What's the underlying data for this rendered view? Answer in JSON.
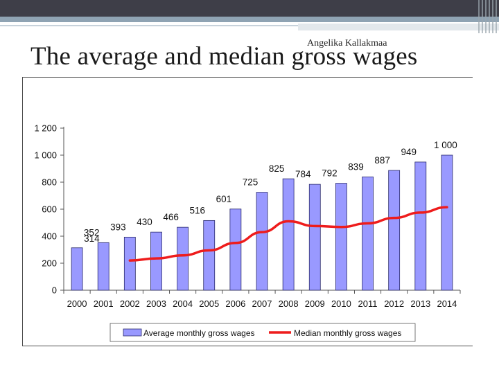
{
  "slide": {
    "author": "Angelika Kallakmaa",
    "title": "The average and median gross wages"
  },
  "colors": {
    "bar_fill": "#9999ff",
    "bar_stroke": "#2a2a6a",
    "median_line": "#ee1c1c"
  },
  "chart_data": {
    "type": "bar",
    "title": "",
    "xlabel": "",
    "ylabel": "",
    "ylim": [
      0,
      1200
    ],
    "y_ticks": [
      0,
      200,
      400,
      600,
      800,
      1000,
      1200
    ],
    "y_tick_labels": [
      "0",
      "200",
      "400",
      "600",
      "800",
      "1 000",
      "1 200"
    ],
    "categories": [
      "2000",
      "2001",
      "2002",
      "2003",
      "2004",
      "2005",
      "2006",
      "2007",
      "2008",
      "2009",
      "2010",
      "2011",
      "2012",
      "2013",
      "2014"
    ],
    "series": [
      {
        "name": "Average monthly gross wages",
        "kind": "bar",
        "values": [
          314,
          352,
          393,
          430,
          466,
          516,
          601,
          725,
          825,
          784,
          792,
          839,
          887,
          949,
          1000
        ],
        "labels": [
          "314",
          "352",
          "393",
          "430",
          "466",
          "516",
          "601",
          "725",
          "825",
          "784",
          "792",
          "839",
          "887",
          "949",
          "1 000"
        ]
      },
      {
        "name": "Median monthly gross wages",
        "kind": "line",
        "values": [
          null,
          null,
          220,
          235,
          258,
          295,
          350,
          430,
          510,
          475,
          468,
          495,
          535,
          575,
          615
        ]
      }
    ],
    "legend": {
      "position": "bottom",
      "entries": [
        "Average monthly gross wages",
        "Median monthly gross wages"
      ]
    }
  }
}
